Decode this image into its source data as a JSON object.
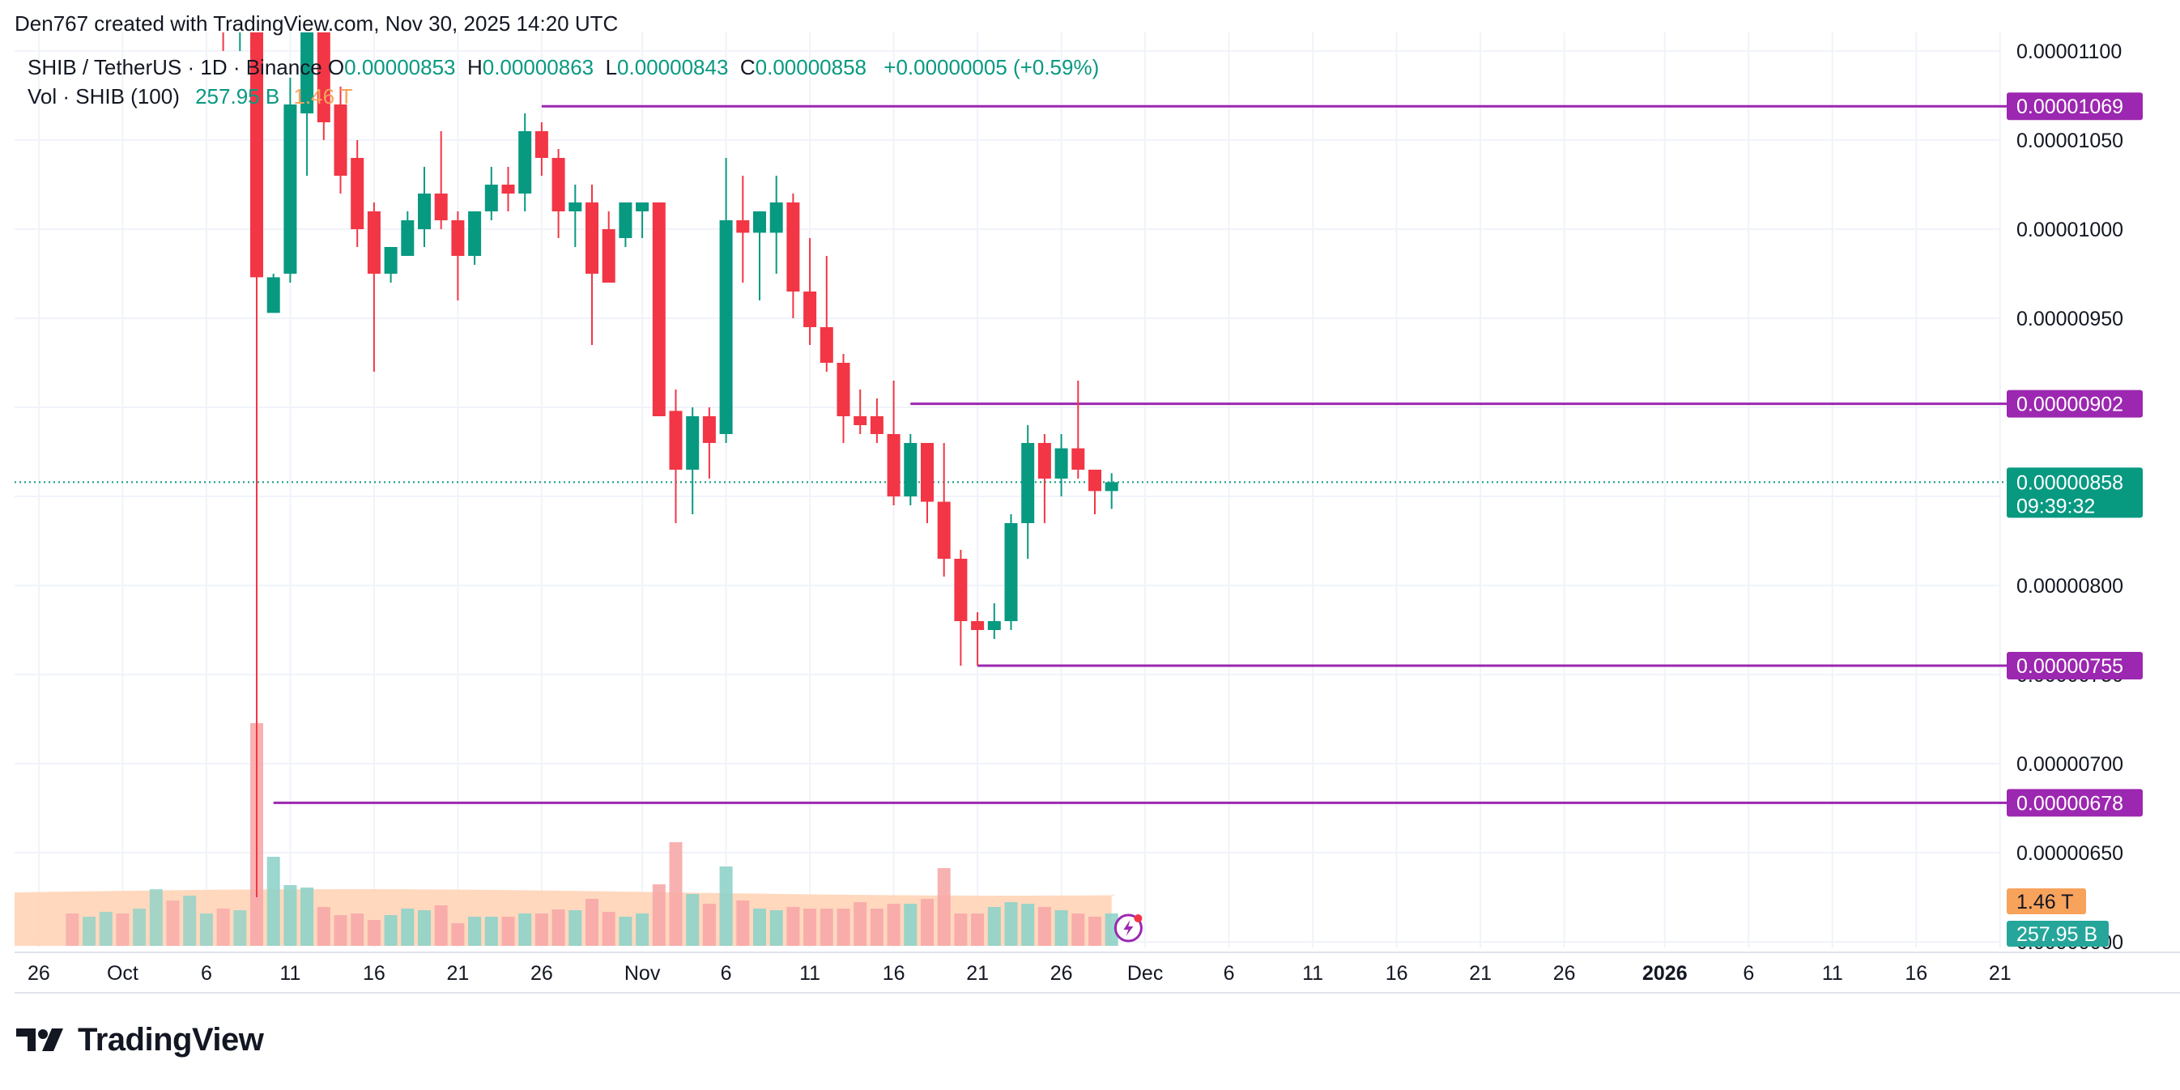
{
  "header": {
    "author_line": "Den767 created with TradingView.com, Nov 30, 2025 14:20 UTC"
  },
  "legend": {
    "symbol": "SHIB / TetherUS · 1D · Binance",
    "o_label": "O",
    "o_value": "0.00000853",
    "h_label": "H",
    "h_value": "0.00000863",
    "l_label": "L",
    "l_value": "0.00000843",
    "c_label": "C",
    "c_value": "0.00000858",
    "change": "+0.00000005 (+0.59%)",
    "vol_label": "Vol · SHIB (100)",
    "vol_value": "257.95 B",
    "vol_ma_value": "1.46 T"
  },
  "footer": {
    "brand": "TradingView"
  },
  "chart_data": {
    "type": "candlestick",
    "title": "SHIB / TetherUS · 1D · Binance",
    "y_range": [
      6.2e-06,
      1.11e-05
    ],
    "y_ticks": [
      "0.00001100",
      "0.00001050",
      "0.00001000",
      "0.00000950",
      "0.00000900",
      "0.00000850",
      "0.00000800",
      "0.00000750",
      "0.00000700",
      "0.00000650",
      "0.00000600"
    ],
    "y_tick_values": [
      1.1e-05,
      1.05e-05,
      1e-05,
      9.5e-06,
      9e-06,
      8.5e-06,
      8e-06,
      7.5e-06,
      7e-06,
      6.5e-06,
      6e-06
    ],
    "x_ticks": [
      "26",
      "Oct",
      "6",
      "11",
      "16",
      "21",
      "26",
      "Nov",
      "6",
      "11",
      "16",
      "21",
      "26",
      "Dec",
      "6",
      "11",
      "16",
      "21",
      "26",
      "2026",
      "6",
      "11",
      "16",
      "21"
    ],
    "x_tick_bold": [
      "2026"
    ],
    "grid": true,
    "candles": [
      {
        "date": "Oct 9",
        "o": 1.19e-05,
        "h": 1.2e-05,
        "l": 6.25e-06,
        "c": 9.73e-06
      },
      {
        "date": "Oct 10",
        "o": 9.53e-06,
        "h": 9.75e-06,
        "l": 9.55e-06,
        "c": 9.73e-06
      },
      {
        "date": "Oct 11",
        "o": 9.75e-06,
        "h": 1.085e-05,
        "l": 9.7e-06,
        "c": 1.07e-05
      },
      {
        "date": "Oct 12",
        "o": 1.065e-05,
        "h": 1.18e-05,
        "l": 1.03e-05,
        "c": 1.17e-05
      },
      {
        "date": "Oct 13",
        "o": 1.15e-05,
        "h": 1.17e-05,
        "l": 1.05e-05,
        "c": 1.06e-05
      },
      {
        "date": "Oct 14",
        "o": 1.07e-05,
        "h": 1.08e-05,
        "l": 1.02e-05,
        "c": 1.03e-05
      },
      {
        "date": "Oct 15",
        "o": 1.04e-05,
        "h": 1.05e-05,
        "l": 9.9e-06,
        "c": 1e-05
      },
      {
        "date": "Oct 16",
        "o": 1.01e-05,
        "h": 1.015e-05,
        "l": 9.2e-06,
        "c": 9.75e-06
      },
      {
        "date": "Oct 17",
        "o": 9.75e-06,
        "h": 9.9e-06,
        "l": 9.7e-06,
        "c": 9.9e-06
      },
      {
        "date": "Oct 18",
        "o": 9.85e-06,
        "h": 1.01e-05,
        "l": 9.85e-06,
        "c": 1.005e-05
      },
      {
        "date": "Oct 19",
        "o": 1e-05,
        "h": 1.035e-05,
        "l": 9.9e-06,
        "c": 1.02e-05
      },
      {
        "date": "Oct 20",
        "o": 1.02e-05,
        "h": 1.055e-05,
        "l": 1e-05,
        "c": 1.005e-05
      },
      {
        "date": "Oct 21",
        "o": 1.005e-05,
        "h": 1.01e-05,
        "l": 9.6e-06,
        "c": 9.85e-06
      },
      {
        "date": "Oct 22",
        "o": 9.85e-06,
        "h": 1.01e-05,
        "l": 9.8e-06,
        "c": 1.01e-05
      },
      {
        "date": "Oct 23",
        "o": 1.01e-05,
        "h": 1.035e-05,
        "l": 1.005e-05,
        "c": 1.025e-05
      },
      {
        "date": "Oct 24",
        "o": 1.025e-05,
        "h": 1.035e-05,
        "l": 1.01e-05,
        "c": 1.02e-05
      },
      {
        "date": "Oct 25",
        "o": 1.02e-05,
        "h": 1.065e-05,
        "l": 1.01e-05,
        "c": 1.055e-05
      },
      {
        "date": "Oct 26",
        "o": 1.055e-05,
        "h": 1.06e-05,
        "l": 1.03e-05,
        "c": 1.04e-05
      },
      {
        "date": "Oct 27",
        "o": 1.04e-05,
        "h": 1.045e-05,
        "l": 9.95e-06,
        "c": 1.01e-05
      },
      {
        "date": "Oct 28",
        "o": 1.01e-05,
        "h": 1.025e-05,
        "l": 9.9e-06,
        "c": 1.015e-05
      },
      {
        "date": "Oct 29",
        "o": 1.015e-05,
        "h": 1.025e-05,
        "l": 9.35e-06,
        "c": 9.75e-06
      },
      {
        "date": "Oct 30",
        "o": 1e-05,
        "h": 1.01e-05,
        "l": 9.7e-06,
        "c": 9.7e-06
      },
      {
        "date": "Oct 31",
        "o": 9.95e-06,
        "h": 1.015e-05,
        "l": 9.9e-06,
        "c": 1.015e-05
      },
      {
        "date": "Nov 1",
        "o": 1.01e-05,
        "h": 1.015e-05,
        "l": 9.95e-06,
        "c": 1.015e-05
      },
      {
        "date": "Nov 2",
        "o": 1.015e-05,
        "h": 1.015e-05,
        "l": 8.95e-06,
        "c": 8.95e-06
      },
      {
        "date": "Nov 3",
        "o": 8.98e-06,
        "h": 9.1e-06,
        "l": 8.35e-06,
        "c": 8.65e-06
      },
      {
        "date": "Nov 4",
        "o": 8.65e-06,
        "h": 9e-06,
        "l": 8.4e-06,
        "c": 8.95e-06
      },
      {
        "date": "Nov 5",
        "o": 8.95e-06,
        "h": 9e-06,
        "l": 8.6e-06,
        "c": 8.8e-06
      },
      {
        "date": "Nov 6",
        "o": 8.85e-06,
        "h": 1.04e-05,
        "l": 8.8e-06,
        "c": 1.005e-05
      },
      {
        "date": "Nov 7",
        "o": 1.005e-05,
        "h": 1.03e-05,
        "l": 9.7e-06,
        "c": 9.98e-06
      },
      {
        "date": "Nov 8",
        "o": 9.98e-06,
        "h": 1.01e-05,
        "l": 9.6e-06,
        "c": 1.01e-05
      },
      {
        "date": "Nov 9",
        "o": 9.98e-06,
        "h": 1.03e-05,
        "l": 9.75e-06,
        "c": 1.015e-05
      },
      {
        "date": "Nov 10",
        "o": 1.015e-05,
        "h": 1.02e-05,
        "l": 9.5e-06,
        "c": 9.65e-06
      },
      {
        "date": "Nov 11",
        "o": 9.65e-06,
        "h": 9.95e-06,
        "l": 9.35e-06,
        "c": 9.45e-06
      },
      {
        "date": "Nov 12",
        "o": 9.45e-06,
        "h": 9.85e-06,
        "l": 9.2e-06,
        "c": 9.25e-06
      },
      {
        "date": "Nov 13",
        "o": 9.25e-06,
        "h": 9.3e-06,
        "l": 8.8e-06,
        "c": 8.95e-06
      },
      {
        "date": "Nov 14",
        "o": 8.95e-06,
        "h": 9.1e-06,
        "l": 8.85e-06,
        "c": 8.9e-06
      },
      {
        "date": "Nov 15",
        "o": 8.95e-06,
        "h": 9.05e-06,
        "l": 8.8e-06,
        "c": 8.85e-06
      },
      {
        "date": "Nov 16",
        "o": 8.85e-06,
        "h": 9.15e-06,
        "l": 8.45e-06,
        "c": 8.5e-06
      },
      {
        "date": "Nov 17",
        "o": 8.5e-06,
        "h": 8.85e-06,
        "l": 8.45e-06,
        "c": 8.8e-06
      },
      {
        "date": "Nov 18",
        "o": 8.8e-06,
        "h": 8.8e-06,
        "l": 8.35e-06,
        "c": 8.47e-06
      },
      {
        "date": "Nov 19",
        "o": 8.47e-06,
        "h": 8.8e-06,
        "l": 8.05e-06,
        "c": 8.15e-06
      },
      {
        "date": "Nov 20",
        "o": 8.15e-06,
        "h": 8.2e-06,
        "l": 7.55e-06,
        "c": 7.8e-06
      },
      {
        "date": "Nov 21",
        "o": 7.8e-06,
        "h": 7.85e-06,
        "l": 7.55e-06,
        "c": 7.75e-06
      },
      {
        "date": "Nov 22",
        "o": 7.75e-06,
        "h": 7.9e-06,
        "l": 7.7e-06,
        "c": 7.8e-06
      },
      {
        "date": "Nov 23",
        "o": 7.8e-06,
        "h": 8.4e-06,
        "l": 7.75e-06,
        "c": 8.35e-06
      },
      {
        "date": "Nov 24",
        "o": 8.35e-06,
        "h": 8.9e-06,
        "l": 8.15e-06,
        "c": 8.8e-06
      },
      {
        "date": "Nov 25",
        "o": 8.8e-06,
        "h": 8.85e-06,
        "l": 8.35e-06,
        "c": 8.6e-06
      },
      {
        "date": "Nov 26",
        "o": 8.6e-06,
        "h": 8.85e-06,
        "l": 8.5e-06,
        "c": 8.77e-06
      },
      {
        "date": "Nov 27",
        "o": 8.77e-06,
        "h": 9.15e-06,
        "l": 8.6e-06,
        "c": 8.65e-06
      },
      {
        "date": "Nov 28",
        "o": 8.65e-06,
        "h": 8.65e-06,
        "l": 8.4e-06,
        "c": 8.53e-06
      },
      {
        "date": "Nov 29",
        "o": 8.53e-06,
        "h": 8.63e-06,
        "l": 8.43e-06,
        "c": 8.58e-06
      }
    ],
    "levels": [
      {
        "value": 1.069e-05,
        "label": "0.00001069",
        "from": "Oct 26"
      },
      {
        "value": 9.02e-06,
        "label": "0.00000902",
        "from": "Nov 17"
      },
      {
        "value": 7.55e-06,
        "label": "0.00000755",
        "from": "Nov 21"
      },
      {
        "value": 6.78e-06,
        "label": "0.00000678",
        "from": "Oct 10"
      }
    ],
    "current_price": {
      "value": 8.58e-06,
      "label": "0.00000858",
      "countdown": "09:39:32"
    },
    "volume_badges": {
      "ma_label": "1.46 T",
      "vol_label": "257.95 B"
    },
    "colors": {
      "up": "#089981",
      "down": "#f23645",
      "level": "#9c27b0",
      "vol_up": "#8fd3c9",
      "vol_down": "#f7a9a8",
      "vol_ma_fill": "#ffd1b3",
      "vol_ma_line": "#f7a35c",
      "grid": "#f0f3fa",
      "axis_text": "#131722"
    }
  }
}
